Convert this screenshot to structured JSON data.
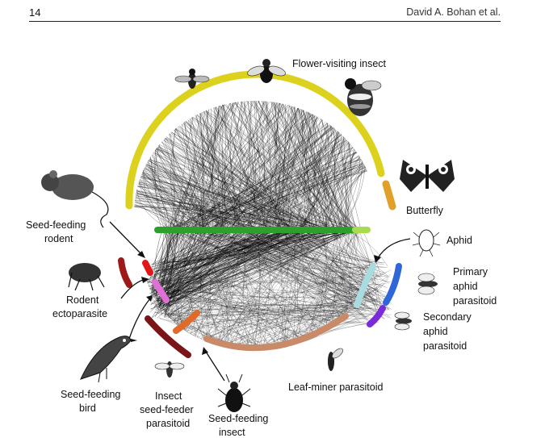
{
  "header": {
    "page_number": "14",
    "authors": "David A. Bohan et al."
  },
  "figure": {
    "labels": {
      "flower_visiting_insect": "Flower-visiting insect",
      "butterfly": "Butterfly",
      "aphid": "Aphid",
      "primary_aphid_parasitoid": [
        "Primary",
        "aphid",
        "parasitoid"
      ],
      "secondary_aphid_parasitoid": [
        "Secondary",
        "aphid",
        "parasitoid"
      ],
      "leaf_miner_parasitoid": "Leaf-miner parasitoid",
      "seed_feeding_insect": [
        "Seed-feeding",
        "insect"
      ],
      "insect_seed_feeder_parasitoid": [
        "Insect",
        "seed-feeder",
        "parasitoid"
      ],
      "seed_feeding_bird": [
        "Seed-feeding",
        "bird"
      ],
      "rodent_ectoparasite": [
        "Rodent",
        "ectoparasite"
      ],
      "seed_feeding_rodent": [
        "Seed-feeding",
        "rodent"
      ]
    },
    "colors": {
      "flower_visiting_insect": "#dcd21e",
      "butterfly": "#e0a02a",
      "plants": "#2ca02c",
      "aphid": "#a8dce0",
      "primary_aphid_parasitoid": "#2f66d8",
      "secondary_aphid_parasitoid": "#7a2ad8",
      "leaf_miner_parasitoid": "#c98a68",
      "seed_feeding_insect": "#e06a2a",
      "insect_seed_feeder_parasitoid": "#7a1418",
      "seed_feeding_bird": "#9c1a1a",
      "rodent_ectoparasite": "#8c1414",
      "seed_feeding_rodent": "#e01818",
      "rodent_pink": "#e070d8",
      "links": "#000000"
    },
    "icons": [
      "fly-icon",
      "hoverfly-icon",
      "bumblebee-icon",
      "butterfly-icon",
      "aphid-icon",
      "primary-parasitoid-wasp-icon",
      "secondary-parasitoid-wasp-icon",
      "leaf-miner-wasp-icon",
      "beetle-icon",
      "seed-feeder-parasitoid-icon",
      "bird-icon",
      "flea-icon",
      "mouse-icon"
    ]
  }
}
